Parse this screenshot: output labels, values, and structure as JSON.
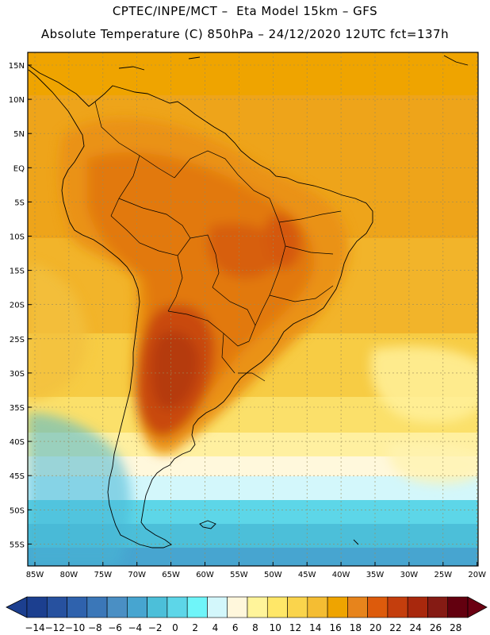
{
  "title": {
    "line1": "CPTEC/INPE/MCT –  Eta Model 15km – GFS",
    "line2": "Absolute Temperature (C) 850hPa – 24/12/2020 12UTC fct=137h"
  },
  "axes": {
    "lat_labels": [
      "15N",
      "10N",
      "5N",
      "EQ",
      "5S",
      "10S",
      "15S",
      "20S",
      "25S",
      "30S",
      "35S",
      "40S",
      "45S",
      "50S",
      "55S"
    ],
    "lon_labels": [
      "85W",
      "80W",
      "75W",
      "70W",
      "65W",
      "60W",
      "55W",
      "50W",
      "45W",
      "40W",
      "35W",
      "30W",
      "25W",
      "20W"
    ]
  },
  "colorbar": {
    "labels": [
      "-14",
      "-12",
      "-10",
      "-8",
      "-6",
      "-4",
      "-2",
      "0",
      "2",
      "4",
      "6",
      "8",
      "10",
      "12",
      "14",
      "16",
      "18",
      "20",
      "22",
      "24",
      "26",
      "28"
    ],
    "colors": [
      "#1c3f8f",
      "#27519f",
      "#2f62ad",
      "#3b77b8",
      "#4a8fc4",
      "#47a5d0",
      "#4cbfd9",
      "#5dd6e8",
      "#6ff5f9",
      "#d3f7fb",
      "#fff7dc",
      "#fff49a",
      "#ffe768",
      "#fad44c",
      "#f4bd33",
      "#efa400",
      "#e7841c",
      "#dd5b0c",
      "#c43e0d",
      "#a8280d",
      "#851b14",
      "#63000f"
    ]
  },
  "colors": {
    "frame": "#000000",
    "grid": "#9a8a5a"
  }
}
